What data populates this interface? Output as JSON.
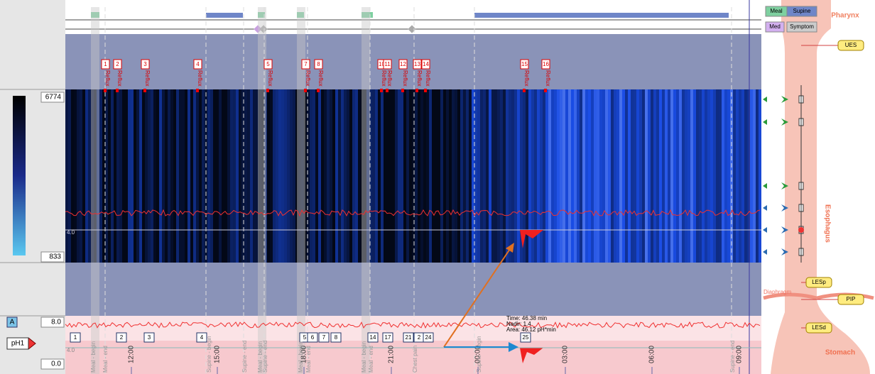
{
  "colorbar": {
    "max": "6774",
    "min": "833"
  },
  "ph_panel": {
    "channel_button": "A",
    "max": "8.0",
    "channel": "pH1",
    "min": "0.0",
    "threshold": "4.0"
  },
  "plot_threshold": "4.0",
  "legend": {
    "meal": "Meal",
    "supine": "Supine",
    "med": "Med",
    "symptom": "Symptom"
  },
  "reflux_events": [
    {
      "number": "1",
      "label": "Reflux"
    },
    {
      "number": "2",
      "label": "Reflux"
    },
    {
      "number": "3",
      "label": "Reflux"
    },
    {
      "number": "4",
      "label": "Reflux"
    },
    {
      "number": "5",
      "label": "Reflux"
    },
    {
      "number": "7",
      "label": "Reflux"
    },
    {
      "number": "8",
      "label": "Reflux"
    },
    {
      "number": "10",
      "label": "Reflux"
    },
    {
      "number": "11",
      "label": "Reflux"
    },
    {
      "number": "12",
      "label": "Reflux"
    },
    {
      "number": "13",
      "label": "Reflux"
    },
    {
      "number": "14",
      "label": "Reflux"
    },
    {
      "number": "15",
      "label": "Reflux"
    },
    {
      "number": "16",
      "label": "Reflux"
    }
  ],
  "ph_events": [
    "1",
    "2",
    "3",
    "4",
    "5",
    "6",
    "7",
    "8",
    "14",
    "17",
    "21",
    "2",
    "24",
    "25"
  ],
  "time_axis": [
    "12:00",
    "15:00",
    "18:00",
    "21:00",
    "00:00",
    "03:00",
    "06:00",
    "09:00"
  ],
  "event_markers": [
    "Meal - begin",
    "Meal - end",
    "Supine - begin",
    "Supine - end",
    "Meal - begin",
    "Supine - end",
    "Meal - begin",
    "Meal - end",
    "Meal - begin",
    "Meal - end",
    "Chest pain",
    "Supine - begin",
    "Supine - end"
  ],
  "tooltip": {
    "time": "Time: 46.38 min",
    "nadir": "Nadir: 1.4",
    "area": "Area: 46.12 pH*min"
  },
  "anatomy": {
    "pharynx": "Pharynx",
    "ues": "UES",
    "esophagus": "Esophagus",
    "diaphragm": "Diaphragm",
    "lesp": "LESp",
    "pip": "PIP",
    "lesd": "LESd",
    "stomach": "Stomach"
  }
}
